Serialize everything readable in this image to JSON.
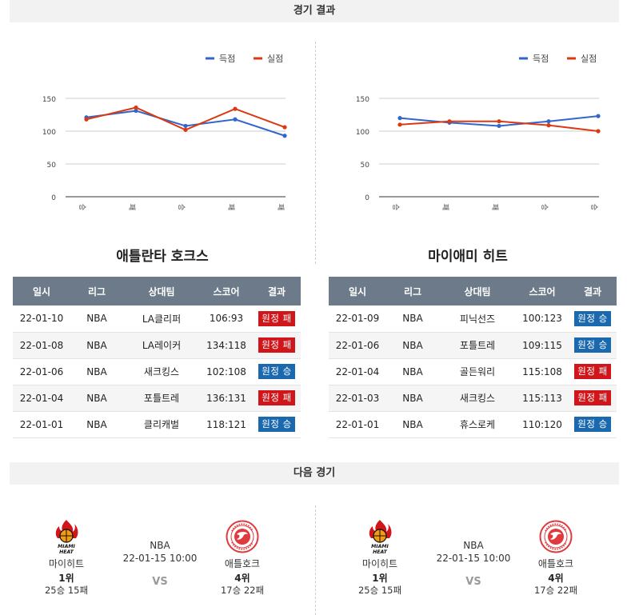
{
  "sections": {
    "results_title": "경기 결과",
    "next_title": "다음 경기"
  },
  "legend": {
    "scored": "득점",
    "allowed": "실점"
  },
  "colors": {
    "scored": "#3366cc",
    "allowed": "#dc3912",
    "win": "#1a68ad",
    "loss": "#d0161a",
    "header_bg": "#6c7a89"
  },
  "chart_data": [
    {
      "type": "line",
      "categories": [
        "승",
        "패",
        "승",
        "패",
        "패"
      ],
      "series": [
        {
          "name": "득점",
          "values": [
            121,
            131,
            108,
            118,
            93
          ]
        },
        {
          "name": "실점",
          "values": [
            118,
            136,
            102,
            134,
            106
          ]
        }
      ],
      "y_ticks": [
        0,
        50,
        100,
        150
      ],
      "ylim": [
        0,
        150
      ],
      "grid": true,
      "legend_position": "top-right"
    },
    {
      "type": "line",
      "categories": [
        "승",
        "패",
        "패",
        "승",
        "승"
      ],
      "series": [
        {
          "name": "득점",
          "values": [
            120,
            113,
            108,
            115,
            123
          ]
        },
        {
          "name": "실점",
          "values": [
            110,
            115,
            115,
            109,
            100
          ]
        }
      ],
      "y_ticks": [
        0,
        50,
        100,
        150
      ],
      "ylim": [
        0,
        150
      ],
      "grid": true,
      "legend_position": "top-right"
    }
  ],
  "table_headers": [
    "일시",
    "리그",
    "상대팀",
    "스코어",
    "결과"
  ],
  "teams": [
    {
      "title": "애틀란타 호크스",
      "rows": [
        {
          "date": "22-01-10",
          "league": "NBA",
          "opponent": "LA클리퍼",
          "score": "106:93",
          "result": "원정 패",
          "result_type": "loss"
        },
        {
          "date": "22-01-08",
          "league": "NBA",
          "opponent": "LA레이커",
          "score": "134:118",
          "result": "원정 패",
          "result_type": "loss"
        },
        {
          "date": "22-01-06",
          "league": "NBA",
          "opponent": "새크킹스",
          "score": "102:108",
          "result": "원정 승",
          "result_type": "win"
        },
        {
          "date": "22-01-04",
          "league": "NBA",
          "opponent": "포틀트레",
          "score": "136:131",
          "result": "원정 패",
          "result_type": "loss"
        },
        {
          "date": "22-01-01",
          "league": "NBA",
          "opponent": "클리캐벌",
          "score": "118:121",
          "result": "원정 승",
          "result_type": "win"
        }
      ]
    },
    {
      "title": "마이애미 히트",
      "rows": [
        {
          "date": "22-01-09",
          "league": "NBA",
          "opponent": "피닉선즈",
          "score": "100:123",
          "result": "원정 승",
          "result_type": "win"
        },
        {
          "date": "22-01-06",
          "league": "NBA",
          "opponent": "포틀트레",
          "score": "109:115",
          "result": "원정 승",
          "result_type": "win"
        },
        {
          "date": "22-01-04",
          "league": "NBA",
          "opponent": "골든워리",
          "score": "115:108",
          "result": "원정 패",
          "result_type": "loss"
        },
        {
          "date": "22-01-03",
          "league": "NBA",
          "opponent": "새크킹스",
          "score": "115:113",
          "result": "원정 패",
          "result_type": "loss"
        },
        {
          "date": "22-01-01",
          "league": "NBA",
          "opponent": "휴스로케",
          "score": "110:120",
          "result": "원정 승",
          "result_type": "win"
        }
      ]
    }
  ],
  "next_games": [
    {
      "league": "NBA",
      "datetime": "22-01-15 10:00",
      "vs": "VS",
      "home": {
        "name": "마이히트",
        "rank": "1위",
        "record": "25승 15패",
        "logo": "miami-heat-logo"
      },
      "away": {
        "name": "애틀호크",
        "rank": "4위",
        "record": "17승 22패",
        "logo": "atlanta-hawks-logo"
      }
    },
    {
      "league": "NBA",
      "datetime": "22-01-15 10:00",
      "vs": "VS",
      "home": {
        "name": "마이히트",
        "rank": "1위",
        "record": "25승 15패",
        "logo": "miami-heat-logo"
      },
      "away": {
        "name": "애틀호크",
        "rank": "4위",
        "record": "17승 22패",
        "logo": "atlanta-hawks-logo"
      }
    }
  ]
}
